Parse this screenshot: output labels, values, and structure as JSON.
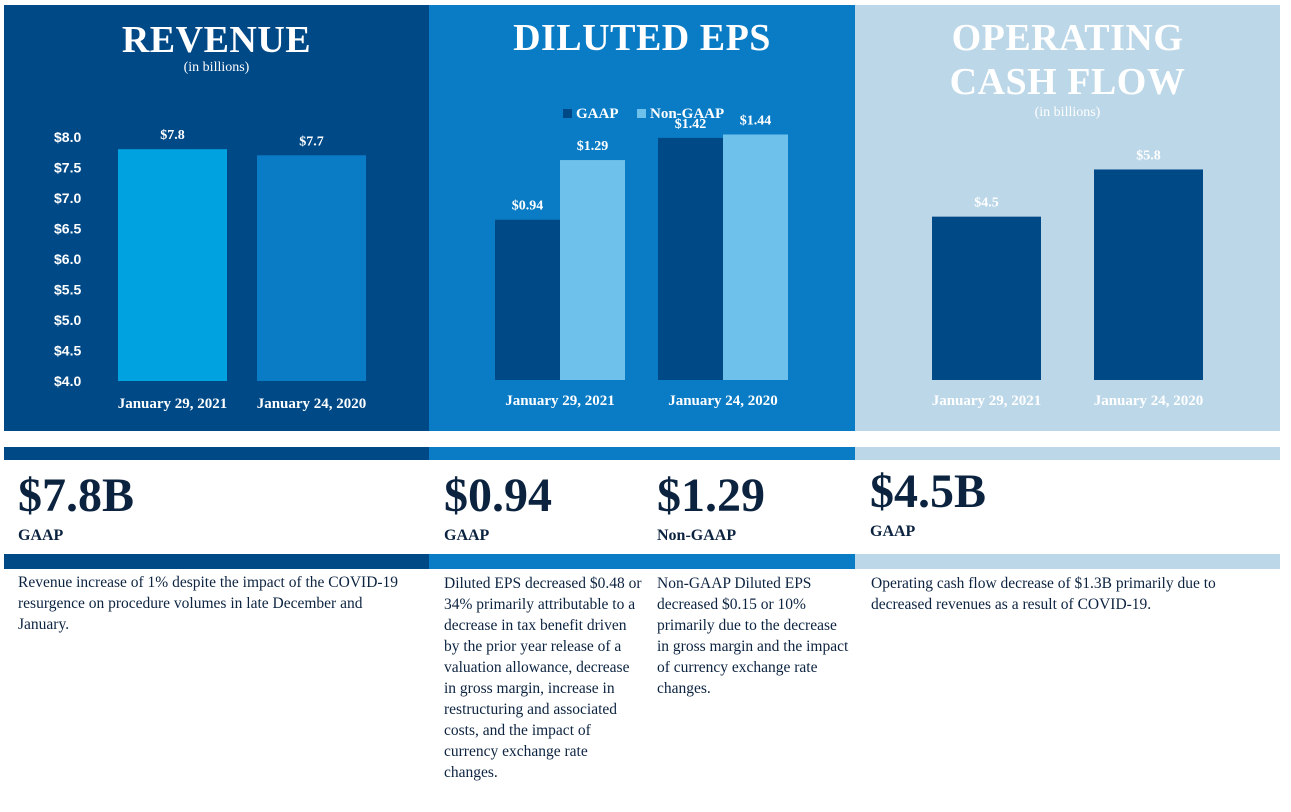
{
  "colors": {
    "revenue_panel": "#004987",
    "eps_panel": "#0a7cc6",
    "ocf_panel": "#bcd7e8",
    "rev_bar_2021": "#00a3e0",
    "rev_bar_2020": "#0a7cc6",
    "gaap": "#004987",
    "non_gaap": "#6ec1ea",
    "ocf_bar": "#004987",
    "text_dark": "#0c2340"
  },
  "revenue": {
    "title": "REVENUE",
    "subtitle": "(in billions)"
  },
  "eps": {
    "title": "DILUTED EPS"
  },
  "ocf": {
    "title_line1": "OPERATING",
    "title_line2": "CASH FLOW",
    "subtitle": "(in billions)"
  },
  "chart_data": [
    {
      "type": "bar",
      "title": "REVENUE",
      "subtitle": "(in billions)",
      "categories": [
        "January 29, 2021",
        "January 24, 2020"
      ],
      "values": [
        7.8,
        7.7
      ],
      "value_labels": [
        "$7.8",
        "$7.7"
      ],
      "ylim": [
        4.0,
        8.0
      ],
      "yticks": [
        "$8.0",
        "$7.5",
        "$7.0",
        "$6.5",
        "$6.0",
        "$5.5",
        "$5.0",
        "$4.5",
        "$4.0"
      ],
      "xlabel": "",
      "ylabel": ""
    },
    {
      "type": "bar",
      "title": "DILUTED EPS",
      "categories": [
        "January 29, 2021",
        "January 24, 2020"
      ],
      "series": [
        {
          "name": "GAAP",
          "values": [
            0.94,
            1.42
          ],
          "labels": [
            "$0.94",
            "$1.42"
          ]
        },
        {
          "name": "Non-GAAP",
          "values": [
            1.29,
            1.44
          ],
          "labels": [
            "$1.29",
            "$1.44"
          ]
        }
      ],
      "legend": "top-center",
      "ylim": [
        0,
        1.5
      ]
    },
    {
      "type": "bar",
      "title": "OPERATING CASH FLOW",
      "subtitle": "(in billions)",
      "categories": [
        "January 29, 2021",
        "January 24, 2020"
      ],
      "values": [
        4.5,
        5.8
      ],
      "value_labels": [
        "$4.5",
        "$5.8"
      ],
      "ylim": [
        0,
        6.0
      ]
    }
  ],
  "kpis": {
    "revenue": {
      "value": "$7.8B",
      "label": "GAAP",
      "desc": "Revenue increase of 1% despite the impact of the COVID-19 resurgence on procedure volumes in late December and January."
    },
    "eps_gaap": {
      "value": "$0.94",
      "label": "GAAP",
      "desc": "Diluted EPS decreased $0.48 or 34% primarily attributable to a decrease in tax benefit driven by the prior year release of a valuation allowance, decrease in gross margin, increase in restructuring and associated costs, and the impact of currency exchange rate changes."
    },
    "eps_nongaap": {
      "value": "$1.29",
      "label": "Non-GAAP",
      "desc": "Non-GAAP Diluted EPS decreased $0.15 or 10% primarily due to the decrease in gross margin and the impact of currency exchange rate changes."
    },
    "ocf": {
      "value": "$4.5B",
      "label": "GAAP",
      "desc": "Operating cash flow decrease of $1.3B primarily due to decreased revenues as a result of COVID-19."
    }
  }
}
